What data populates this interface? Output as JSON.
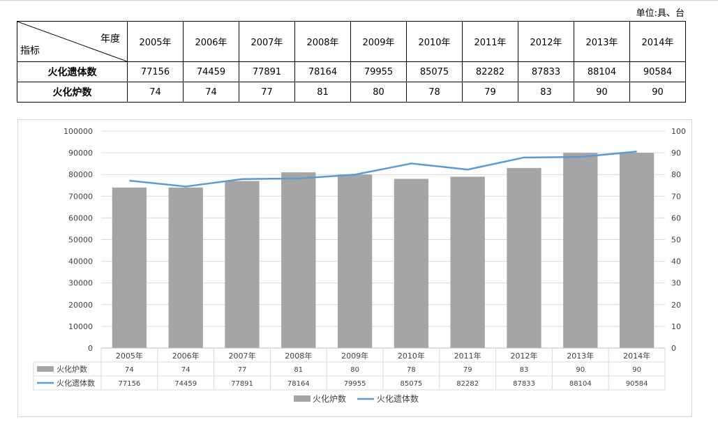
{
  "unit_label": "单位:具、台",
  "table": {
    "corner_top": "年度",
    "corner_bottom": "指标",
    "years": [
      "2005年",
      "2006年",
      "2007年",
      "2008年",
      "2009年",
      "2010年",
      "2011年",
      "2012年",
      "2013年",
      "2014年"
    ],
    "rows": [
      {
        "label": "火化遗体数",
        "values": [
          "77156",
          "74459",
          "77891",
          "78164",
          "79955",
          "85075",
          "82282",
          "87833",
          "88104",
          "90584"
        ]
      },
      {
        "label": "火化炉数",
        "values": [
          "74",
          "74",
          "77",
          "81",
          "80",
          "78",
          "79",
          "83",
          "90",
          "90"
        ]
      }
    ]
  },
  "chart_data": {
    "type": "bar",
    "categories": [
      "2005年",
      "2006年",
      "2007年",
      "2008年",
      "2009年",
      "2010年",
      "2011年",
      "2012年",
      "2013年",
      "2014年"
    ],
    "series": [
      {
        "name": "火化炉数",
        "type": "bar",
        "axis": "right",
        "color": "#a5a5a5",
        "values": [
          74,
          74,
          77,
          81,
          80,
          78,
          79,
          83,
          90,
          90
        ]
      },
      {
        "name": "火化遗体数",
        "type": "line",
        "axis": "left",
        "color": "#5b9bd5",
        "values": [
          77156,
          74459,
          77891,
          78164,
          79955,
          85075,
          82282,
          87833,
          88104,
          90584
        ]
      }
    ],
    "ylim_left": [
      0,
      100000
    ],
    "yticks_left": [
      "0",
      "10000",
      "20000",
      "30000",
      "40000",
      "50000",
      "60000",
      "70000",
      "80000",
      "90000",
      "100000"
    ],
    "ylim_right": [
      0,
      100
    ],
    "yticks_right": [
      "0",
      "10",
      "20",
      "30",
      "40",
      "50",
      "60",
      "70",
      "80",
      "90",
      "100"
    ],
    "grid": true,
    "legend": "bottom",
    "data_table": true
  }
}
